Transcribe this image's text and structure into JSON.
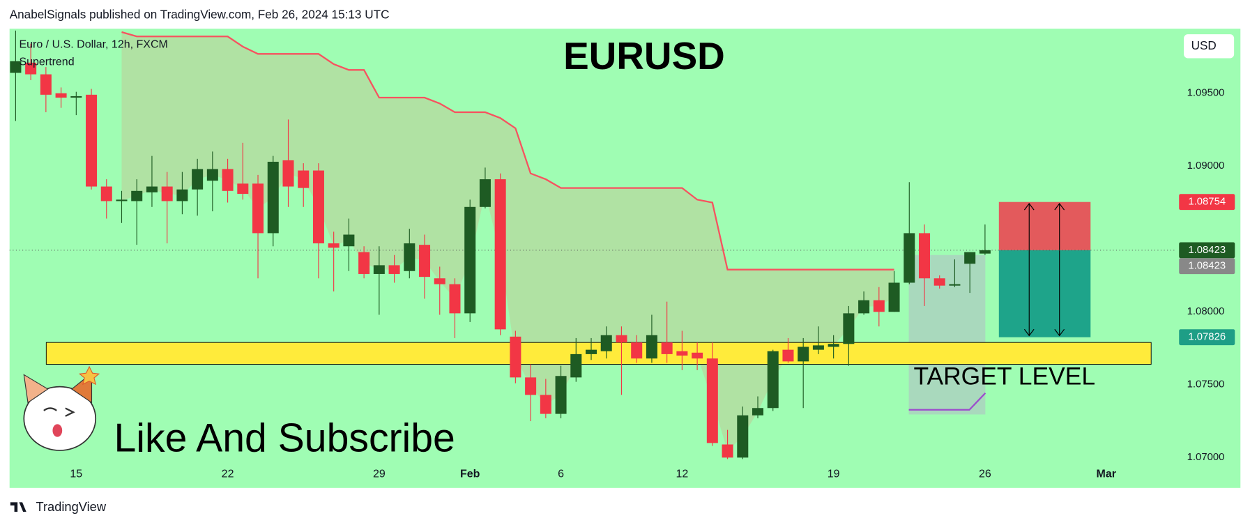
{
  "header": "AnabelSignals published on TradingView.com, Feb 26, 2024 15:13 UTC",
  "footer": "TradingView",
  "currency": "USD",
  "chart_data": {
    "type": "candlestick",
    "title": "EURUSD",
    "legend": "Euro / U.S. Dollar, 12h, FXCM",
    "annotations": [
      "Like And Subscribe",
      "TARGET LEVEL"
    ],
    "up_color": "#1e5b23",
    "down_color": "#f23645",
    "open": [
      1.0964,
      1.0971,
      1.0963,
      1.095,
      1.0947,
      1.0949,
      1.0886,
      1.0876,
      1.0876,
      1.0882,
      1.0886,
      1.0876,
      1.0884,
      1.089,
      1.0898,
      1.0888,
      1.0888,
      1.0854,
      1.0904,
      1.0897,
      1.0897,
      1.0847,
      1.0845,
      1.0841,
      1.0826,
      1.0832,
      1.0828,
      1.0846,
      1.0823,
      1.0819,
      1.0799,
      1.0872,
      1.0891,
      1.0783,
      1.0755,
      1.0743,
      1.073,
      1.0755,
      1.0771,
      1.0773,
      1.0784,
      1.0779,
      1.0768,
      1.0779,
      1.0773,
      1.0772,
      1.0768,
      1.0709,
      1.07,
      1.0729,
      1.0734,
      1.0774,
      1.0766,
      1.0774,
      1.0776,
      1.0778,
      1.0799,
      1.0808,
      1.08,
      1.082,
      1.0854,
      1.0823,
      1.0818,
      1.0833,
      1.084
    ],
    "high": [
      1.0993,
      1.0984,
      1.0968,
      1.0954,
      1.0951,
      1.0953,
      1.0891,
      1.0883,
      1.0891,
      1.0907,
      1.0896,
      1.0896,
      1.0905,
      1.091,
      1.0905,
      1.0916,
      1.0894,
      1.0907,
      1.0932,
      1.0902,
      1.0902,
      1.0855,
      1.0864,
      1.0845,
      1.0845,
      1.0839,
      1.0857,
      1.0853,
      1.0831,
      1.0823,
      1.0877,
      1.0899,
      1.0895,
      1.0787,
      1.0764,
      1.0754,
      1.0763,
      1.0782,
      1.0782,
      1.079,
      1.079,
      1.0784,
      1.0798,
      1.0807,
      1.0787,
      1.0779,
      1.0779,
      1.0719,
      1.0735,
      1.0742,
      1.0774,
      1.0782,
      1.0782,
      1.079,
      1.0784,
      1.0804,
      1.0814,
      1.0817,
      1.0828,
      1.0889,
      1.086,
      1.0825,
      1.0836,
      1.0841,
      1.086
    ],
    "low": [
      1.0931,
      1.0959,
      1.0937,
      1.094,
      1.0935,
      1.0884,
      1.0864,
      1.0861,
      1.0846,
      1.0872,
      1.0847,
      1.0867,
      1.0866,
      1.0869,
      1.0875,
      1.0877,
      1.0823,
      1.0845,
      1.0872,
      1.0872,
      1.0823,
      1.0814,
      1.0828,
      1.0823,
      1.0798,
      1.082,
      1.0823,
      1.0809,
      1.0798,
      1.0782,
      1.0793,
      1.0871,
      1.0784,
      1.0751,
      1.0725,
      1.0727,
      1.0727,
      1.0752,
      1.0767,
      1.0768,
      1.0743,
      1.0765,
      1.0765,
      1.0765,
      1.076,
      1.076,
      1.0708,
      1.0699,
      1.0699,
      1.0727,
      1.0732,
      1.0765,
      1.0734,
      1.0771,
      1.0768,
      1.0763,
      1.0798,
      1.079,
      1.08,
      1.0819,
      1.0804,
      1.0816,
      1.0817,
      1.0813,
      1.0839
    ],
    "close": [
      1.0972,
      1.0963,
      1.0949,
      1.0947,
      1.0948,
      1.0886,
      1.0876,
      1.0877,
      1.0883,
      1.0886,
      1.0876,
      1.0884,
      1.0898,
      1.0898,
      1.0883,
      1.0881,
      1.0854,
      1.0903,
      1.0886,
      1.0885,
      1.0847,
      1.0844,
      1.0853,
      1.0826,
      1.0832,
      1.0826,
      1.0847,
      1.0824,
      1.0819,
      1.0799,
      1.0872,
      1.0891,
      1.0788,
      1.0755,
      1.0743,
      1.073,
      1.0756,
      1.0771,
      1.0774,
      1.0784,
      1.0779,
      1.0768,
      1.0784,
      1.0771,
      1.077,
      1.0768,
      1.071,
      1.07,
      1.0729,
      1.0734,
      1.0773,
      1.0766,
      1.0776,
      1.0777,
      1.0778,
      1.0799,
      1.0808,
      1.08,
      1.082,
      1.0854,
      1.0823,
      1.0818,
      1.0819,
      1.0841,
      1.08423
    ],
    "series": [
      {
        "name": "Supertrend",
        "color": "#f7525f",
        "values": [
          null,
          null,
          null,
          null,
          null,
          null,
          null,
          1.0992,
          1.0989,
          1.0989,
          1.0989,
          1.0989,
          1.0989,
          1.0989,
          1.0989,
          1.0982,
          1.0977,
          1.0977,
          1.0977,
          1.0977,
          1.0977,
          1.097,
          1.0966,
          1.0966,
          1.0947,
          1.0947,
          1.0947,
          1.0947,
          1.0943,
          1.0937,
          1.0937,
          1.0937,
          1.0933,
          1.0926,
          1.0895,
          1.0891,
          1.0885,
          1.0885,
          1.0885,
          1.0885,
          1.0885,
          1.0885,
          1.0885,
          1.0885,
          1.0885,
          1.0877,
          1.0875,
          1.0829,
          1.0829,
          1.0829,
          1.0829,
          1.0829,
          1.0829,
          1.0829,
          1.0829,
          1.0829,
          1.0829,
          1.0829,
          1.0829,
          null,
          null,
          null,
          null,
          null,
          null
        ]
      }
    ],
    "zone": [
      1.0764,
      1.0779
    ],
    "position": {
      "stop": 1.08754,
      "entry": 1.08423,
      "target": 1.07826
    },
    "xlim": [
      -0.4,
      76.6
    ],
    "xticks": [
      {
        "value": 4,
        "label": "15"
      },
      {
        "value": 14,
        "label": "22"
      },
      {
        "value": 24,
        "label": "29"
      },
      {
        "value": 30,
        "label": "Feb"
      },
      {
        "value": 36,
        "label": "6"
      },
      {
        "value": 44,
        "label": "12"
      },
      {
        "value": 54,
        "label": "19"
      },
      {
        "value": 64,
        "label": "26"
      },
      {
        "value": 72,
        "label": "Mar"
      }
    ],
    "ylim": [
      1.06945,
      1.09943
    ],
    "yticks": [
      {
        "value": 1.095,
        "label": "1.09500"
      },
      {
        "value": 1.09,
        "label": "1.09000"
      },
      {
        "value": 1.08,
        "label": "1.08000"
      },
      {
        "value": 1.075,
        "label": "1.07500"
      },
      {
        "value": 1.07,
        "label": "1.07000"
      }
    ],
    "grid": false
  }
}
